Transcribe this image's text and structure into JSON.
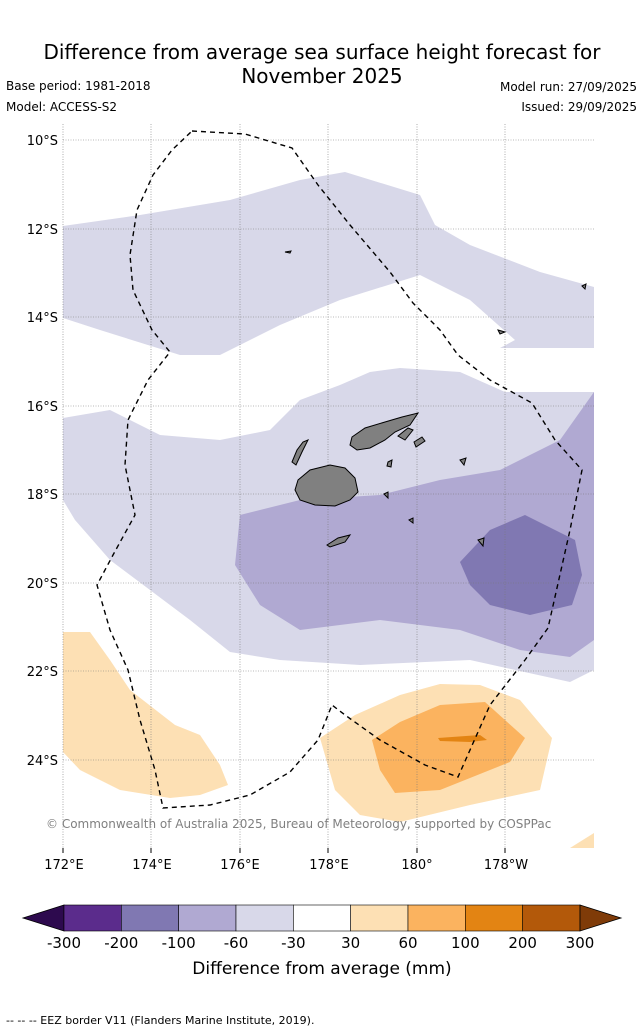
{
  "header": {
    "title_line1": "Difference from average sea surface height forecast for",
    "title_line2": "November 2025",
    "base_period": "Base period: 1981-2018",
    "model": "Model: ACCESS-S2",
    "model_run": "Model run: 27/09/2025",
    "issued": "Issued: 29/09/2025"
  },
  "map": {
    "lat_labels": [
      "10°S",
      "12°S",
      "14°S",
      "16°S",
      "18°S",
      "20°S",
      "22°S",
      "24°S"
    ],
    "lon_labels": [
      "172°E",
      "174°E",
      "176°E",
      "178°E",
      "180°",
      "178°W"
    ],
    "copyright": "© Commonwealth of Australia 2025, Bureau of Meteorology, supported by COSPPac",
    "layers": {
      "anomaly_fill": "sea-surface-height-anomaly",
      "land": "fiji-islands",
      "border": "eez-border"
    },
    "colors": {
      "land": "#808080",
      "lv_neg30_neg60": "#d8d8e9",
      "lv_neg60_neg100": "#b0a9d2",
      "lv_neg100_neg200": "#8078b2",
      "lv_30_60": "#fde0b4",
      "lv_60_100": "#fbb35f",
      "lv_100_200": "#e38413"
    }
  },
  "colorbar": {
    "ticks": [
      "-300",
      "-200",
      "-100",
      "-60",
      "-30",
      "30",
      "60",
      "100",
      "200",
      "300"
    ],
    "colors": [
      "#5b2c8c",
      "#8078b2",
      "#b0a9d2",
      "#d8d8e9",
      "#ffffff",
      "#fde0b4",
      "#fbb35f",
      "#e38413",
      "#b3590a"
    ],
    "extend_low": "#2d0a4e",
    "extend_high": "#7f3b08",
    "label": "Difference from average (mm)"
  },
  "footer": {
    "legend_text": "--  --  -- EEZ border V11 (Flanders Marine Institute, 2019)."
  }
}
